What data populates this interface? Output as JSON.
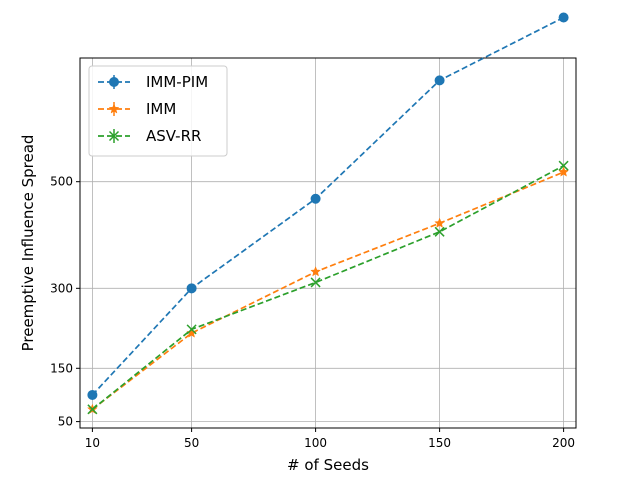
{
  "chart_data": {
    "type": "line",
    "title": "",
    "xlabel": "# of Seeds",
    "ylabel": "Preemptive Influence Spread",
    "x": [
      10,
      50,
      100,
      150,
      200
    ],
    "x_ticks": [
      "10",
      "50",
      "100",
      "150",
      "200"
    ],
    "y_ticks": [
      "50",
      "150",
      "300",
      "500"
    ],
    "xlim": [
      5,
      205
    ],
    "ylim": [
      38,
      732
    ],
    "grid": true,
    "legend_position": "top-left",
    "series": [
      {
        "name": "IMM-PIM",
        "color": "#1f77b4",
        "marker": "circle",
        "values": [
          100,
          300,
          468,
          690,
          808
        ]
      },
      {
        "name": "IMM",
        "color": "#ff7f0e",
        "marker": "star",
        "values": [
          73,
          216,
          331,
          422,
          518
        ]
      },
      {
        "name": "ASV-RR",
        "color": "#2ca02c",
        "marker": "x",
        "values": [
          73,
          223,
          311,
          406,
          530
        ]
      }
    ]
  }
}
